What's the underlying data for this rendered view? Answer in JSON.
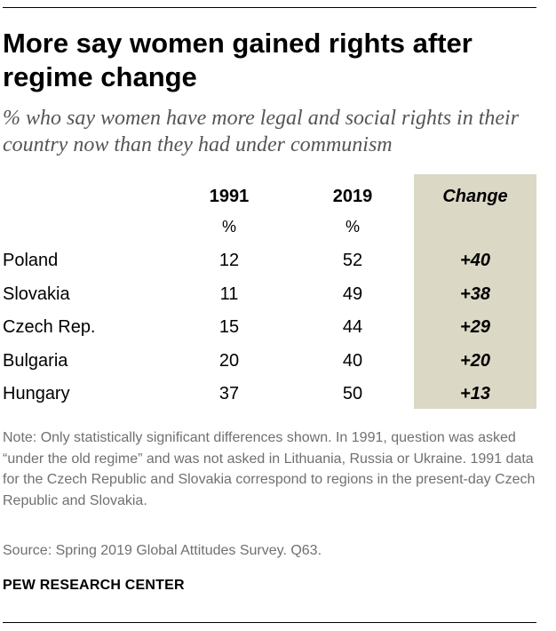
{
  "title": "More say women gained rights after regime change",
  "subtitle": "% who say women have more legal and social rights in their country now than they had under communism",
  "chart_data": {
    "type": "table",
    "columns": [
      {
        "key": "y1991",
        "label": "1991",
        "unit": "%"
      },
      {
        "key": "y2019",
        "label": "2019",
        "unit": "%"
      },
      {
        "key": "change",
        "label": "Change",
        "unit": ""
      }
    ],
    "rows": [
      {
        "country": "Poland",
        "y1991": "12",
        "y2019": "52",
        "change": "+40"
      },
      {
        "country": "Slovakia",
        "y1991": "11",
        "y2019": "49",
        "change": "+38"
      },
      {
        "country": "Czech Rep.",
        "y1991": "15",
        "y2019": "44",
        "change": "+29"
      },
      {
        "country": "Bulgaria",
        "y1991": "20",
        "y2019": "40",
        "change": "+20"
      },
      {
        "country": "Hungary",
        "y1991": "37",
        "y2019": "50",
        "change": "+13"
      }
    ],
    "highlight_color": "#dcd8c6"
  },
  "note": "Note: Only statistically significant differences shown. In 1991, question was asked “under the old regime” and was not asked in Lithuania, Russia or Ukraine. 1991 data for the Czech Republic and Slovakia correspond to regions in the present-day Czech Republic and Slovakia.",
  "source": "Source: Spring 2019 Global Attitudes Survey. Q63.",
  "brand": "PEW RESEARCH CENTER"
}
